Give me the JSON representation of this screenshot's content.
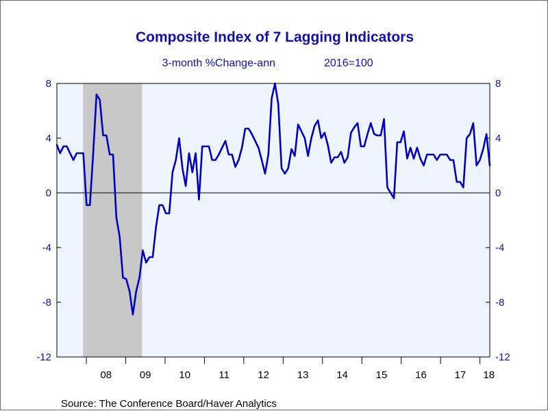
{
  "chart_data": {
    "type": "line",
    "title": "Composite Index of 7 Lagging Indicators",
    "subtitle_left": "3-month %Change-ann",
    "subtitle_right": "2016=100",
    "source": "Source:  The Conference Board/Haver Analytics",
    "xlabel": "",
    "ylabel": "",
    "ylim": [
      -12,
      8
    ],
    "yticks": [
      "8",
      "4",
      "0",
      "-4",
      "-8",
      "-12"
    ],
    "yticks_right": [
      "8",
      "4",
      "0",
      "-4",
      "-8",
      "-12"
    ],
    "x_tick_labels": [
      "08",
      "09",
      "10",
      "11",
      "12",
      "13",
      "14",
      "15",
      "16",
      "17",
      "18"
    ],
    "x_range_years": [
      2007.25,
      2018.25
    ],
    "recession_shading": [
      2007.917,
      2009.417
    ],
    "zero_line": true,
    "grid": false,
    "colors": {
      "line": "#0000c0",
      "plot_background": "#eef5ff",
      "recession": "#c8c8c8",
      "text": "#1010b0"
    },
    "series": [
      {
        "values": [
          3.5,
          2.9,
          3.4,
          3.4,
          2.9,
          2.4,
          2.9,
          2.9,
          2.9,
          -0.9,
          -0.9,
          2.9,
          7.2,
          6.8,
          4.2,
          4.2,
          2.8,
          2.8,
          -1.8,
          -3.2,
          -6.2,
          -6.3,
          -7.2,
          -8.9,
          -7.2,
          -6.2,
          -4.2,
          -5.1,
          -4.7,
          -4.7,
          -2.5,
          -0.9,
          -0.9,
          -1.5,
          -1.5,
          1.5,
          2.4,
          4.0,
          1.8,
          0.5,
          2.9,
          1.5,
          2.9,
          -0.5,
          3.4,
          3.4,
          3.4,
          2.4,
          2.4,
          2.8,
          3.3,
          3.8,
          2.8,
          2.8,
          1.9,
          2.4,
          3.3,
          4.7,
          4.7,
          4.3,
          3.8,
          3.3,
          2.4,
          1.4,
          2.8,
          6.9,
          8.0,
          6.5,
          1.8,
          1.4,
          1.8,
          3.2,
          2.7,
          5.0,
          4.5,
          4.0,
          2.7,
          4.0,
          4.9,
          5.3,
          4.0,
          4.4,
          3.5,
          2.2,
          2.6,
          2.6,
          3.0,
          2.2,
          2.6,
          4.4,
          4.8,
          5.1,
          3.4,
          3.4,
          4.3,
          5.1,
          4.3,
          4.2,
          4.2,
          5.4,
          0.4,
          0.0,
          -0.4,
          3.7,
          3.7,
          4.5,
          2.5,
          3.3,
          2.5,
          3.3,
          2.5,
          2.0,
          2.8,
          2.8,
          2.8,
          2.4,
          2.8,
          2.8,
          2.8,
          2.4,
          2.4,
          0.8,
          0.8,
          0.4,
          4.0,
          4.3,
          5.1,
          2.0,
          2.4,
          3.2,
          4.3,
          2.0
        ]
      }
    ]
  }
}
